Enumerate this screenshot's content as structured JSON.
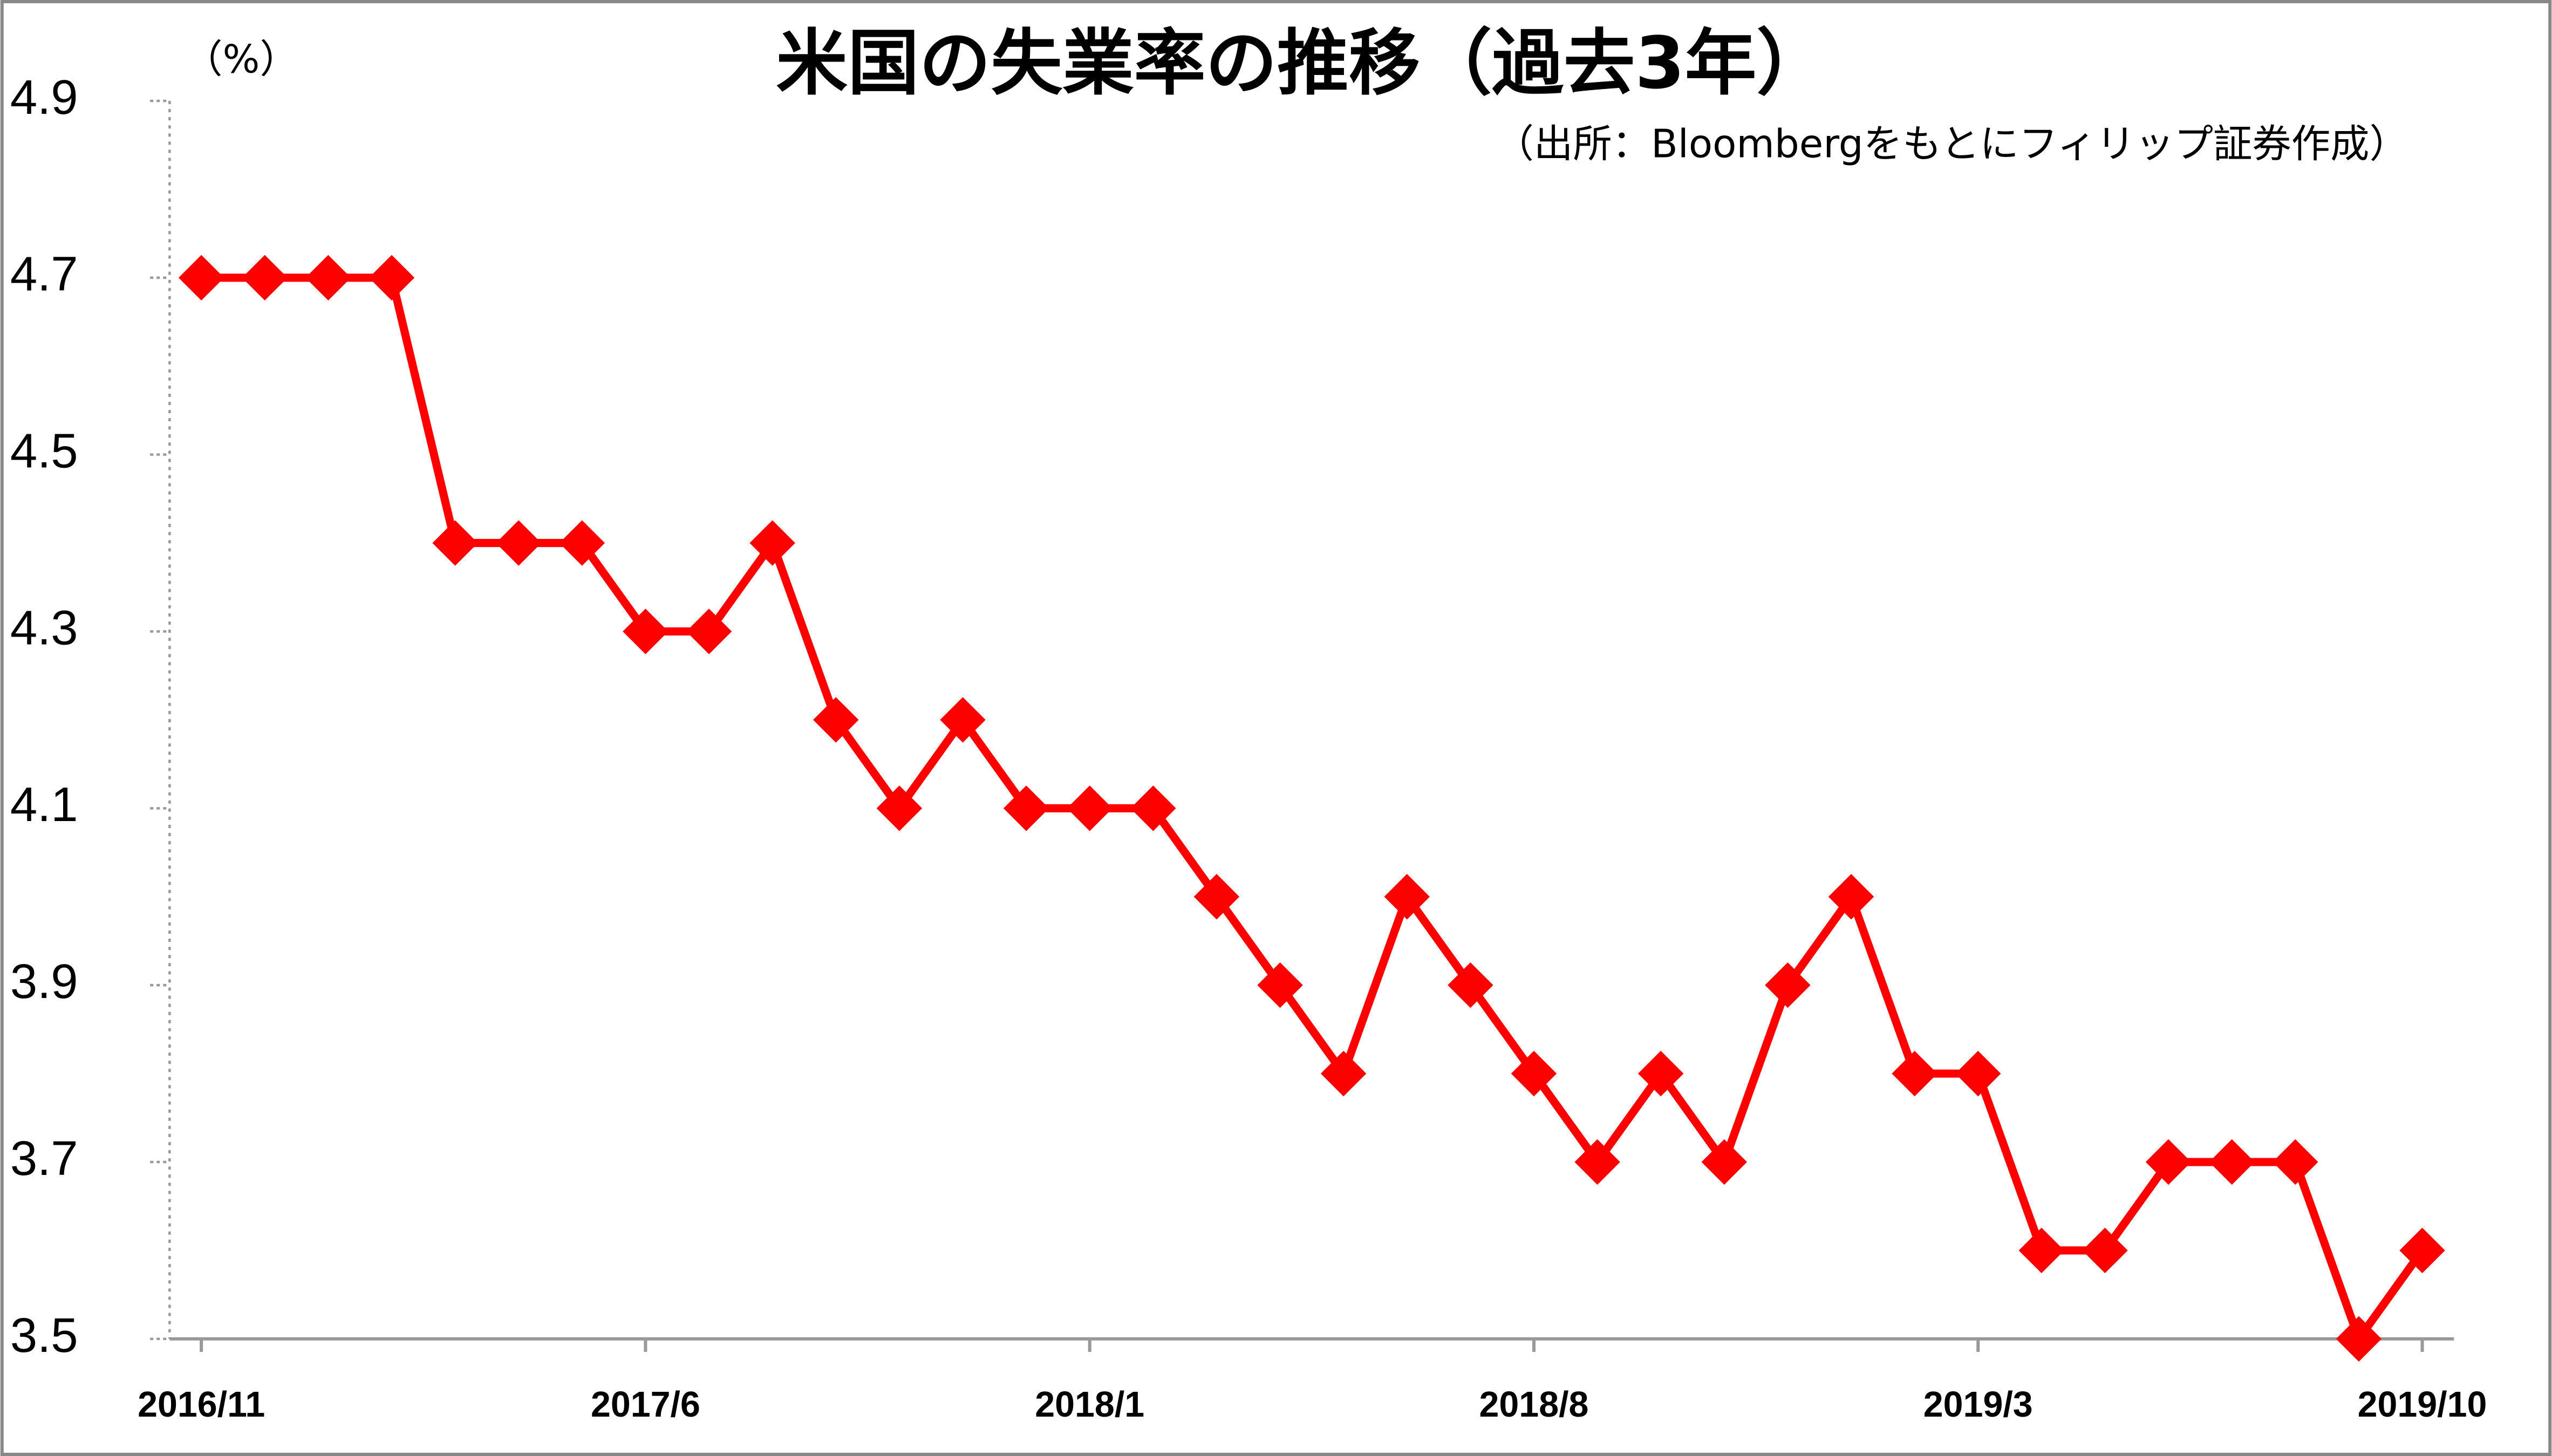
{
  "chart_data": {
    "type": "line",
    "title": "米国の失業率の推移（過去3年）",
    "subtitle": "（出所：Bloombergをもとにフィリップ証券作成）",
    "y_label": "（%）",
    "categories": [
      "2016/11",
      null,
      null,
      null,
      null,
      null,
      null,
      "2017/6",
      null,
      null,
      null,
      null,
      null,
      null,
      "2018/1",
      null,
      null,
      null,
      null,
      null,
      null,
      "2018/8",
      null,
      null,
      null,
      null,
      null,
      null,
      "2019/3",
      null,
      null,
      null,
      null,
      null,
      null,
      "2019/10"
    ],
    "series": [
      {
        "name": "失業率",
        "color": "#ff0000",
        "values": [
          4.7,
          4.7,
          4.7,
          4.7,
          4.4,
          4.4,
          4.4,
          4.3,
          4.3,
          4.4,
          4.2,
          4.1,
          4.2,
          4.1,
          4.1,
          4.1,
          4.0,
          3.9,
          3.8,
          4.0,
          3.9,
          3.8,
          3.7,
          3.8,
          3.7,
          3.9,
          4.0,
          3.8,
          3.8,
          3.6,
          3.6,
          3.7,
          3.7,
          3.7,
          3.5,
          3.6
        ]
      }
    ],
    "ylim": [
      3.5,
      4.9
    ],
    "yticks": [
      3.5,
      3.7,
      3.9,
      4.1,
      4.3,
      4.5,
      4.7,
      4.9
    ],
    "grid": false
  }
}
